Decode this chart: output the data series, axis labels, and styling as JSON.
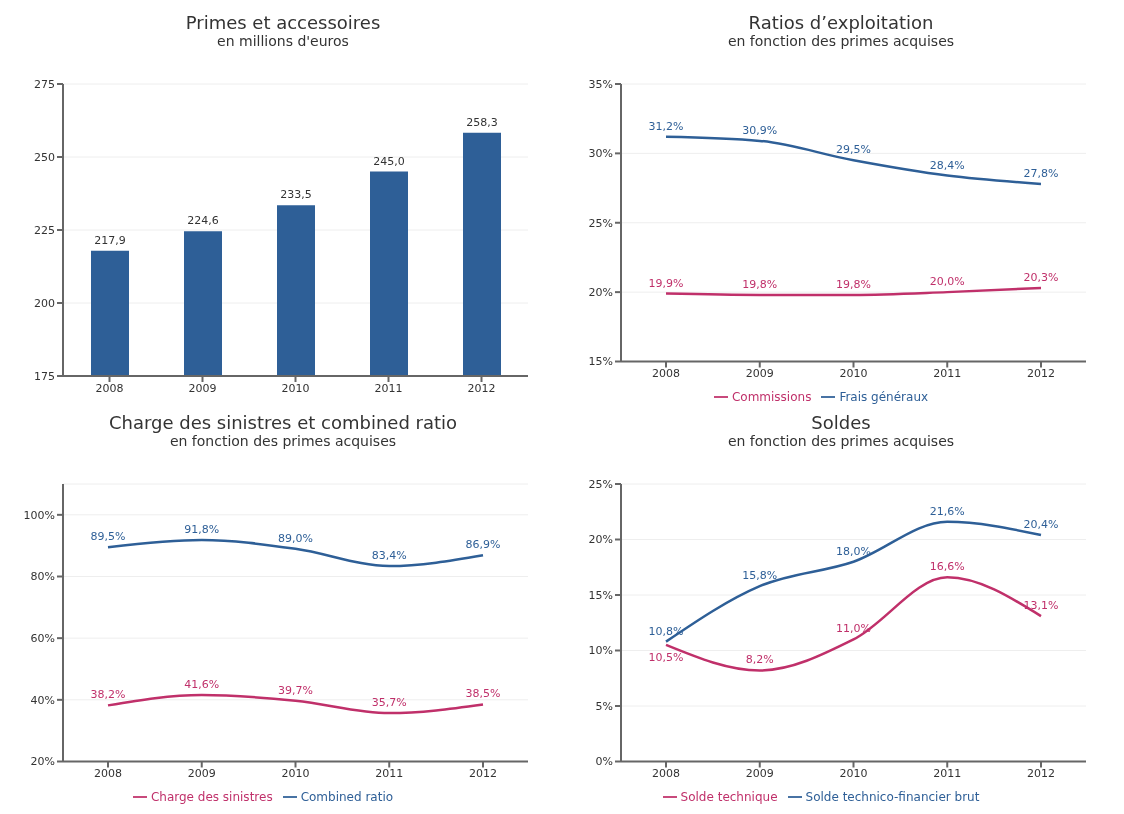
{
  "chart_data": [
    {
      "type": "bar",
      "title": "Primes et accessoires",
      "subtitle": "en millions d'euros",
      "categories": [
        "2008",
        "2009",
        "2010",
        "2011",
        "2012"
      ],
      "values": [
        217.9,
        224.6,
        233.5,
        245.0,
        258.3
      ],
      "value_labels": [
        "217,9",
        "224,6",
        "233,5",
        "245,0",
        "258,3"
      ],
      "color": "#2e5f97",
      "ylim": [
        175,
        275
      ],
      "yticks": [
        175,
        200,
        225,
        250,
        275
      ],
      "grid": "y"
    },
    {
      "type": "line",
      "title": "Ratios d’exploitation",
      "subtitle": "en fonction des primes acquises",
      "categories": [
        "2008",
        "2009",
        "2010",
        "2011",
        "2012"
      ],
      "series": [
        {
          "name": "Commissions",
          "color": "#c0306a",
          "values": [
            19.9,
            19.8,
            19.8,
            20.0,
            20.3
          ],
          "value_labels": [
            "19,9%",
            "19,8%",
            "19,8%",
            "20,0%",
            "20,3%"
          ]
        },
        {
          "name": "Frais généraux",
          "color": "#2e5f97",
          "values": [
            31.2,
            30.9,
            29.5,
            28.4,
            27.8
          ],
          "value_labels": [
            "31,2%",
            "30,9%",
            "29,5%",
            "28,4%",
            "27,8%"
          ]
        }
      ],
      "ylim": [
        15,
        35
      ],
      "yticks": [
        {
          "value": 15,
          "label": "15%"
        },
        {
          "value": 20,
          "label": "20%"
        },
        {
          "value": 25,
          "label": "25%"
        },
        {
          "value": 30,
          "label": "30%"
        },
        {
          "value": 35,
          "label": "35%"
        }
      ],
      "grid": "y",
      "legend": "bottom",
      "marker": "none"
    },
    {
      "type": "line",
      "title": "Charge des sinistres et combined ratio",
      "subtitle": "en fonction des primes acquises",
      "categories": [
        "2008",
        "2009",
        "2010",
        "2011",
        "2012"
      ],
      "series": [
        {
          "name": "Charge des sinistres",
          "color": "#c0306a",
          "values": [
            38.2,
            41.6,
            39.7,
            35.7,
            38.5
          ],
          "value_labels": [
            "38,2%",
            "41,6%",
            "39,7%",
            "35,7%",
            "38,5%"
          ]
        },
        {
          "name": "Combined ratio",
          "color": "#2e5f97",
          "values": [
            89.5,
            91.8,
            89.0,
            83.4,
            86.9
          ],
          "value_labels": [
            "89,5%",
            "91,8%",
            "89,0%",
            "83,4%",
            "86,9%"
          ]
        }
      ],
      "ylim": [
        20,
        110
      ],
      "yticks": [
        {
          "value": 20,
          "label": "20%"
        },
        {
          "value": 40,
          "label": "40%"
        },
        {
          "value": 60,
          "label": "60%"
        },
        {
          "value": 80,
          "label": "80%"
        },
        {
          "value": 100,
          "label": "100%"
        }
      ],
      "grid": "y",
      "legend": "bottom",
      "marker": "none"
    },
    {
      "type": "line",
      "title": "Soldes",
      "subtitle": "en fonction des primes acquises",
      "categories": [
        "2008",
        "2009",
        "2010",
        "2011",
        "2012"
      ],
      "series": [
        {
          "name": "Solde technique",
          "color": "#c0306a",
          "values": [
            10.5,
            8.2,
            11.0,
            16.6,
            13.1
          ],
          "value_labels": [
            "10,5%",
            "8,2%",
            "11,0%",
            "16,6%",
            "13,1%"
          ]
        },
        {
          "name": "Solde technico-financier brut",
          "color": "#2e5f97",
          "values": [
            10.8,
            15.8,
            18.0,
            21.6,
            20.4
          ],
          "value_labels": [
            "10,8%",
            "15,8%",
            "18,0%",
            "21,6%",
            "20,4%"
          ]
        }
      ],
      "ylim": [
        0,
        25
      ],
      "yticks": [
        {
          "value": 0,
          "label": "0%"
        },
        {
          "value": 5,
          "label": "5%"
        },
        {
          "value": 10,
          "label": "10%"
        },
        {
          "value": 15,
          "label": "15%"
        },
        {
          "value": 20,
          "label": "20%"
        },
        {
          "value": 25,
          "label": "25%"
        }
      ],
      "grid": "y",
      "legend": "bottom",
      "marker": "none"
    }
  ]
}
